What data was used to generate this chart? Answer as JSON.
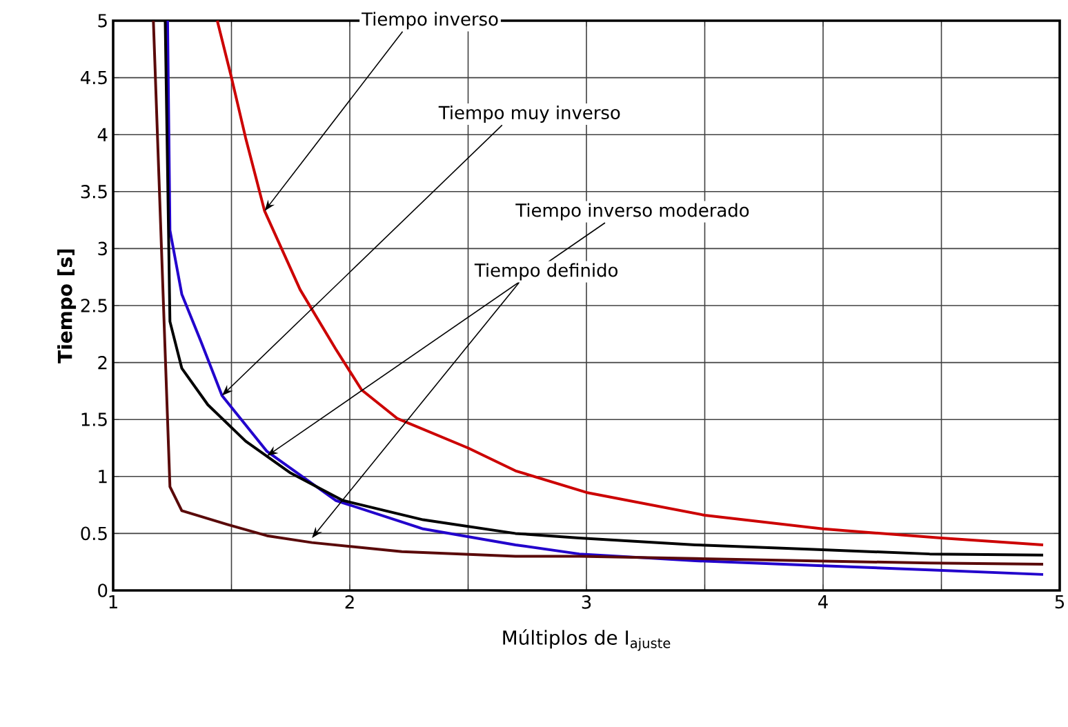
{
  "chart_data": {
    "type": "line",
    "xlabel": "Múltiplos de I$_{ajuste}$",
    "ylabel": "Tiempo [s]",
    "xlim": [
      1,
      5
    ],
    "ylim": [
      0,
      5
    ],
    "xticks": [
      1,
      {
        "value": 1.5,
        "label": null
      },
      2,
      {
        "value": 2.5,
        "label": null
      },
      3,
      {
        "value": 3.5,
        "label": null
      },
      4,
      {
        "value": 4.5,
        "label": null
      },
      5
    ],
    "yticks": [
      0,
      0.5,
      1,
      1.5,
      2,
      2.5,
      3,
      3.5,
      4,
      4.5,
      5
    ],
    "grid": true,
    "marker": "none",
    "line_style": "solid",
    "series": [
      {
        "color": "#cc0000",
        "x": [
          1.44,
          1.5,
          1.56,
          1.64,
          1.79,
          1.94,
          2.05,
          2.2,
          2.5,
          2.7,
          3,
          3.5,
          4,
          4.5,
          4.93
        ],
        "values": [
          5,
          4.5,
          3.97,
          3.33,
          2.64,
          2.12,
          1.76,
          1.51,
          1.25,
          1.05,
          0.86,
          0.66,
          0.54,
          0.46,
          0.4
        ]
      },
      {
        "color": "#2200cc",
        "x": [
          1.23,
          1.24,
          1.29,
          1.37,
          1.46,
          1.65,
          1.94,
          2.31,
          2.7,
          2.97,
          3.46,
          3.96,
          4.45,
          4.93
        ],
        "values": [
          5,
          3.16,
          2.6,
          2.19,
          1.71,
          1.22,
          0.79,
          0.54,
          0.4,
          0.32,
          0.26,
          0.22,
          0.18,
          0.14
        ]
      },
      {
        "color": "#000000",
        "x": [
          1.22,
          1.24,
          1.29,
          1.4,
          1.56,
          1.75,
          1.97,
          2.31,
          2.7,
          2.97,
          3.46,
          3.96,
          4.45,
          4.93
        ],
        "values": [
          5,
          2.36,
          1.95,
          1.63,
          1.31,
          1.03,
          0.79,
          0.62,
          0.5,
          0.46,
          0.4,
          0.36,
          0.32,
          0.31
        ]
      },
      {
        "color": "#5a0a0a",
        "x": [
          1.17,
          1.24,
          1.29,
          1.48,
          1.65,
          1.84,
          2.22,
          2.7,
          2.97,
          3.46,
          4.45,
          4.93
        ],
        "values": [
          5,
          0.91,
          0.7,
          0.58,
          0.48,
          0.42,
          0.34,
          0.3,
          0.3,
          0.28,
          0.24,
          0.23
        ]
      }
    ],
    "annotations": [
      {
        "text": "Tiempo inverso",
        "x": 1.64,
        "y": 3.33
      },
      {
        "text": "Tiempo muy inverso",
        "x": 1.46,
        "y": 1.71
      },
      {
        "text": "Tiempo inverso moderado",
        "x": 1.65,
        "y": 1.18
      },
      {
        "text": "Tiempo definido",
        "x": 1.84,
        "y": 0.46
      }
    ]
  }
}
